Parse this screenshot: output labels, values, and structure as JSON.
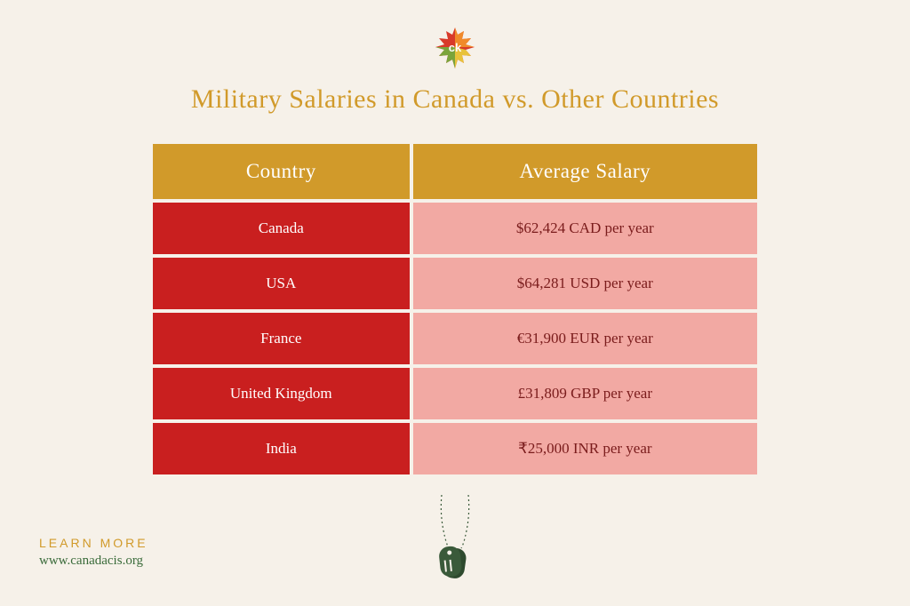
{
  "title": {
    "text": "Military Salaries in Canada vs. Other Countries",
    "color": "#d19a2a"
  },
  "table": {
    "header_bg": "#d19a2a",
    "header_text_color": "#ffffff",
    "country_bg": "#c91f1f",
    "country_text_color": "#ffffff",
    "salary_bg": "#f2a9a3",
    "salary_text_color": "#7a1c1c",
    "columns": [
      "Country",
      "Average Salary"
    ],
    "rows": [
      {
        "country": "Canada",
        "salary": "$62,424 CAD per year"
      },
      {
        "country": "USA",
        "salary": "$64,281 USD per year"
      },
      {
        "country": "France",
        "salary": "€31,900 EUR per year"
      },
      {
        "country": "United Kingdom",
        "salary": "£31,809 GBP per year"
      },
      {
        "country": "India",
        "salary": "₹25,000 INR per year"
      }
    ]
  },
  "learn_more": {
    "label": "LEARN MORE",
    "label_color": "#d19a2a",
    "url": "www.canadacis.org",
    "url_color": "#3a6b3a"
  },
  "icons": {
    "dogtag_color": "#3a5a3a",
    "leaf_colors": {
      "red": "#d83a2a",
      "orange": "#f08a2a",
      "yellow": "#e8c23a",
      "green": "#7aa43a"
    }
  }
}
